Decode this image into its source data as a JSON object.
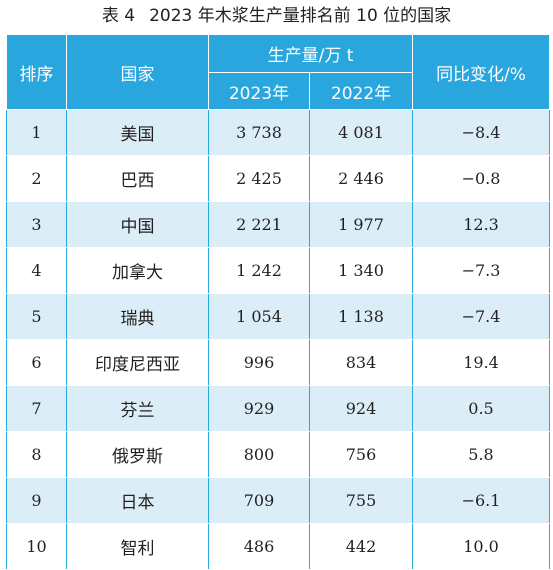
{
  "caption": {
    "label": "表 4",
    "title": "2023 年木浆生产量排名前 10 位的国家"
  },
  "headers": {
    "rank": "排序",
    "country": "国家",
    "production": "生产量/万 t",
    "y2023": "2023年",
    "y2022": "2022年",
    "change": "同比变化/%"
  },
  "rows": [
    {
      "rank": "1",
      "country": "美国",
      "y2023": "3 738",
      "y2022": "4 081",
      "change": "−8.4"
    },
    {
      "rank": "2",
      "country": "巴西",
      "y2023": "2 425",
      "y2022": "2 446",
      "change": "−0.8"
    },
    {
      "rank": "3",
      "country": "中国",
      "y2023": "2 221",
      "y2022": "1 977",
      "change": "12.3"
    },
    {
      "rank": "4",
      "country": "加拿大",
      "y2023": "1 242",
      "y2022": "1 340",
      "change": "−7.3"
    },
    {
      "rank": "5",
      "country": "瑞典",
      "y2023": "1 054",
      "y2022": "1 138",
      "change": "−7.4"
    },
    {
      "rank": "6",
      "country": "印度尼西亚",
      "y2023": "996",
      "y2022": "834",
      "change": "19.4"
    },
    {
      "rank": "7",
      "country": "芬兰",
      "y2023": "929",
      "y2022": "924",
      "change": "0.5"
    },
    {
      "rank": "8",
      "country": "俄罗斯",
      "y2023": "800",
      "y2022": "756",
      "change": "5.8"
    },
    {
      "rank": "9",
      "country": "日本",
      "y2023": "709",
      "y2022": "755",
      "change": "−6.1"
    },
    {
      "rank": "10",
      "country": "智利",
      "y2023": "486",
      "y2022": "442",
      "change": "10.0"
    }
  ],
  "colors": {
    "header_bg": "#29a6de",
    "stripe_bg": "#dbeef8",
    "text": "#231f20"
  }
}
